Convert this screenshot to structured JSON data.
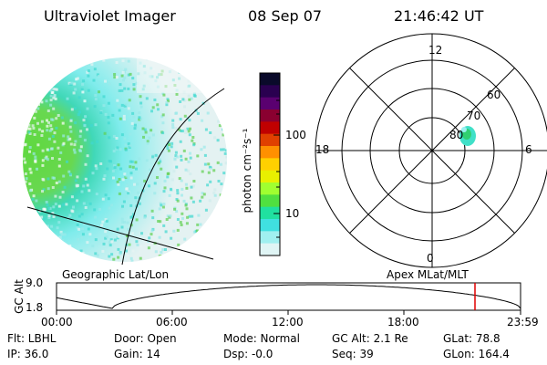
{
  "header": {
    "instrument": "Ultraviolet Imager",
    "date": "08 Sep 07",
    "time": "21:46:42 UT"
  },
  "colorbar": {
    "unit_label": "photon cm⁻²s⁻¹",
    "ticks": [
      "100",
      "10"
    ],
    "colors": [
      "#0a0a2a",
      "#2a0050",
      "#5a0070",
      "#8a0030",
      "#c00000",
      "#e04000",
      "#ff9000",
      "#ffd000",
      "#e8f000",
      "#a0ff30",
      "#50e040",
      "#20e0a0",
      "#40e0e0",
      "#a0f0f0",
      "#e0f5f5"
    ]
  },
  "polar_plot": {
    "mlt_labels": {
      "top": "12",
      "left": "18",
      "right": "6",
      "bottom": "0"
    },
    "lat_labels": [
      "60",
      "70",
      "80"
    ]
  },
  "labels": {
    "geographic": "Geographic Lat/Lon",
    "apex": "Apex MLat/MLT"
  },
  "altitude_strip": {
    "axis_label": "GC Alt",
    "y_ticks": [
      "9.0",
      "1.8"
    ],
    "x_ticks": [
      "00:00",
      "06:00",
      "12:00",
      "18:00",
      "23:59"
    ],
    "marker_color": "#e00000"
  },
  "info": {
    "row1": {
      "flt": "Flt: LBHL",
      "door": "Door: Open",
      "mode": "Mode: Normal",
      "gcalt": "GC Alt: 2.1 Re",
      "glat": "GLat:  78.8"
    },
    "row2": {
      "ip": "IP: 36.0",
      "gain": "Gain: 14",
      "dsp": "Dsp:   -0.0",
      "seq": "Seq: 39",
      "glon": "GLon: 164.4"
    }
  }
}
